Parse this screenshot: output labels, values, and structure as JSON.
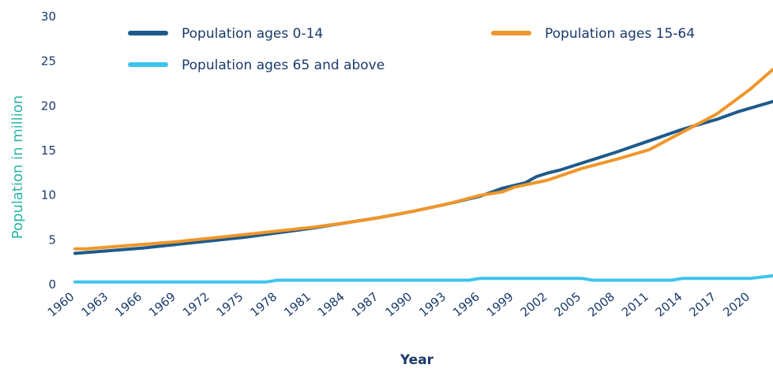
{
  "chart_data": {
    "type": "line",
    "title": "",
    "xlabel": "Year",
    "ylabel": "Population in million",
    "ylim": [
      0,
      30
    ],
    "xlim": [
      1960,
      2022
    ],
    "yticks": [
      0,
      5,
      10,
      15,
      20,
      25,
      30
    ],
    "xticks": [
      1960,
      1963,
      1966,
      1969,
      1972,
      1975,
      1978,
      1981,
      1984,
      1987,
      1990,
      1993,
      1996,
      1999,
      2002,
      2005,
      2008,
      2011,
      2014,
      2017,
      2020
    ],
    "legend_position": "top",
    "grid": false,
    "colors": {
      "text": "#1a3a6b",
      "ylabel": "#2bb5a8"
    },
    "series": [
      {
        "name": "Population ages 0-14",
        "color": "#1d5a8c",
        "points": [
          [
            1960,
            3.4
          ],
          [
            1963,
            3.7
          ],
          [
            1966,
            4.0
          ],
          [
            1969,
            4.4
          ],
          [
            1972,
            4.8
          ],
          [
            1975,
            5.2
          ],
          [
            1978,
            5.7
          ],
          [
            1981,
            6.2
          ],
          [
            1984,
            6.8
          ],
          [
            1987,
            7.4
          ],
          [
            1990,
            8.1
          ],
          [
            1993,
            8.9
          ],
          [
            1996,
            9.8
          ],
          [
            1998,
            10.7
          ],
          [
            2000,
            11.3
          ],
          [
            2001,
            12.0
          ],
          [
            2002,
            12.4
          ],
          [
            2003,
            12.7
          ],
          [
            2005,
            13.5
          ],
          [
            2008,
            14.7
          ],
          [
            2011,
            16.0
          ],
          [
            2014,
            17.3
          ],
          [
            2017,
            18.4
          ],
          [
            2019,
            19.3
          ],
          [
            2022,
            20.4
          ]
        ]
      },
      {
        "name": "Population ages 15-64",
        "color": "#f0962a",
        "points": [
          [
            1960,
            3.9
          ],
          [
            1961,
            3.9
          ],
          [
            1963,
            4.1
          ],
          [
            1966,
            4.4
          ],
          [
            1969,
            4.7
          ],
          [
            1972,
            5.1
          ],
          [
            1975,
            5.5
          ],
          [
            1978,
            5.9
          ],
          [
            1981,
            6.3
          ],
          [
            1984,
            6.8
          ],
          [
            1987,
            7.4
          ],
          [
            1990,
            8.1
          ],
          [
            1993,
            8.9
          ],
          [
            1996,
            9.9
          ],
          [
            1998,
            10.3
          ],
          [
            1999,
            10.8
          ],
          [
            2002,
            11.6
          ],
          [
            2005,
            12.9
          ],
          [
            2008,
            13.9
          ],
          [
            2011,
            15.0
          ],
          [
            2014,
            17.0
          ],
          [
            2017,
            19.0
          ],
          [
            2020,
            21.8
          ],
          [
            2022,
            24.0
          ]
        ]
      },
      {
        "name": "Population ages 65 and above",
        "color": "#3ec4ee",
        "points": [
          [
            1960,
            0.2
          ],
          [
            1977,
            0.2
          ],
          [
            1978,
            0.4
          ],
          [
            1995,
            0.4
          ],
          [
            1996,
            0.6
          ],
          [
            2005,
            0.6
          ],
          [
            2006,
            0.4
          ],
          [
            2013,
            0.4
          ],
          [
            2014,
            0.6
          ],
          [
            2020,
            0.6
          ],
          [
            2022,
            0.9
          ]
        ]
      }
    ]
  }
}
